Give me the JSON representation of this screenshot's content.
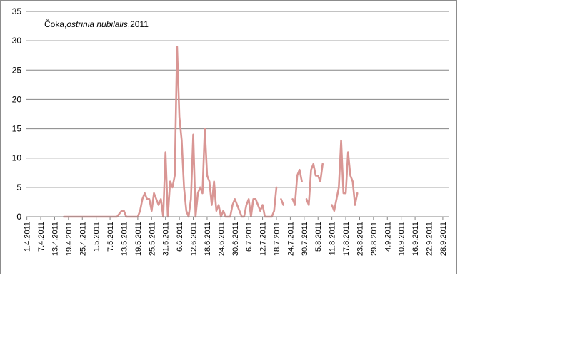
{
  "chart_data": {
    "type": "line",
    "title_parts": [
      "Čoka,",
      "ostrinia nubilalis",
      ",2011"
    ],
    "xlabel": "",
    "ylabel": "",
    "ylim": [
      0,
      35
    ],
    "yticks": [
      0,
      5,
      10,
      15,
      20,
      25,
      30,
      35
    ],
    "grid": true,
    "legend": "none",
    "line_color": "#d99694",
    "x_tick_labels": [
      "1.4.2011",
      "7.4.2011",
      "13.4.2011",
      "19.4.2011",
      "25.4.2011",
      "1.5.2011",
      "7.5.2011",
      "13.5.2011",
      "19.5.2011",
      "25.5.2011",
      "31.5.2011",
      "6.6.2011",
      "12.6.2011",
      "18.6.2011",
      "24.6.2011",
      "30.6.2011",
      "6.7.2011",
      "12.7.2011",
      "18.7.2011",
      "24.7.2011",
      "30.7.2011",
      "5.8.2011",
      "11.8.2011",
      "17.8.2011",
      "23.8.2011",
      "29.8.2011",
      "4.9.2011",
      "10.9.2011",
      "16.9.2011",
      "22.9.2011",
      "28.9.2011"
    ],
    "x_start_date": "2011-04-01",
    "x_end_date": "2011-10-01",
    "series": [
      {
        "points": [
          [
            "2011-04-17",
            0
          ],
          [
            "2011-04-20",
            0
          ],
          [
            "2011-04-25",
            0
          ],
          [
            "2011-05-01",
            0
          ],
          [
            "2011-05-05",
            0
          ],
          [
            "2011-05-10",
            0
          ],
          [
            "2011-05-12",
            1
          ],
          [
            "2011-05-13",
            1
          ],
          [
            "2011-05-14",
            0
          ],
          [
            "2011-05-15",
            0
          ],
          [
            "2011-05-17",
            0
          ],
          [
            "2011-05-18",
            0
          ],
          [
            "2011-05-19",
            0
          ],
          [
            "2011-05-20",
            1
          ],
          [
            "2011-05-21",
            3
          ],
          [
            "2011-05-22",
            4
          ],
          [
            "2011-05-23",
            3
          ],
          [
            "2011-05-24",
            3
          ],
          [
            "2011-05-25",
            1
          ],
          [
            "2011-05-26",
            4
          ],
          [
            "2011-05-27",
            3
          ],
          [
            "2011-05-28",
            2
          ],
          [
            "2011-05-29",
            3
          ],
          [
            "2011-05-30",
            0
          ],
          [
            "2011-05-31",
            11
          ],
          [
            "2011-06-01",
            0
          ],
          [
            "2011-06-02",
            6
          ],
          [
            "2011-06-03",
            5
          ],
          [
            "2011-06-04",
            7
          ],
          [
            "2011-06-05",
            29
          ],
          [
            "2011-06-06",
            17
          ],
          [
            "2011-06-07",
            13
          ],
          [
            "2011-06-08",
            5
          ],
          [
            "2011-06-09",
            1
          ],
          [
            "2011-06-10",
            0
          ],
          [
            "2011-06-11",
            3
          ],
          [
            "2011-06-12",
            14
          ],
          [
            "2011-06-13",
            0
          ],
          [
            "2011-06-14",
            4
          ],
          [
            "2011-06-15",
            5
          ],
          [
            "2011-06-16",
            4
          ],
          [
            "2011-06-17",
            15
          ],
          [
            "2011-06-18",
            7
          ],
          [
            "2011-06-19",
            6
          ],
          [
            "2011-06-20",
            2
          ],
          [
            "2011-06-21",
            6
          ],
          [
            "2011-06-22",
            1
          ],
          [
            "2011-06-23",
            2
          ],
          [
            "2011-06-24",
            0
          ],
          [
            "2011-06-25",
            1
          ],
          [
            "2011-06-26",
            0
          ],
          [
            "2011-06-27",
            0
          ],
          [
            "2011-06-28",
            0
          ],
          [
            "2011-06-29",
            2
          ],
          [
            "2011-06-30",
            3
          ],
          [
            "2011-07-01",
            2
          ],
          [
            "2011-07-02",
            1
          ],
          [
            "2011-07-03",
            0
          ],
          [
            "2011-07-04",
            0
          ],
          [
            "2011-07-05",
            2
          ],
          [
            "2011-07-06",
            3
          ],
          [
            "2011-07-07",
            0
          ],
          [
            "2011-07-08",
            3
          ],
          [
            "2011-07-09",
            3
          ],
          [
            "2011-07-10",
            2
          ],
          [
            "2011-07-11",
            1
          ],
          [
            "2011-07-12",
            2
          ],
          [
            "2011-07-13",
            0
          ],
          [
            "2011-07-14",
            0
          ],
          [
            "2011-07-15",
            0
          ],
          [
            "2011-07-16",
            0
          ],
          [
            "2011-07-17",
            1
          ],
          [
            "2011-07-18",
            5
          ],
          null,
          [
            "2011-07-20",
            3
          ],
          [
            "2011-07-21",
            2
          ],
          null,
          [
            "2011-07-25",
            3
          ],
          [
            "2011-07-26",
            2
          ],
          [
            "2011-07-27",
            7
          ],
          [
            "2011-07-28",
            8
          ],
          [
            "2011-07-29",
            6
          ],
          null,
          [
            "2011-07-31",
            3
          ],
          [
            "2011-08-01",
            2
          ],
          [
            "2011-08-02",
            8
          ],
          [
            "2011-08-03",
            9
          ],
          [
            "2011-08-04",
            7
          ],
          [
            "2011-08-05",
            7
          ],
          [
            "2011-08-06",
            6
          ],
          [
            "2011-08-07",
            9
          ],
          null,
          [
            "2011-08-11",
            2
          ],
          [
            "2011-08-12",
            1
          ],
          [
            "2011-08-13",
            3
          ],
          [
            "2011-08-14",
            5
          ],
          [
            "2011-08-15",
            13
          ],
          [
            "2011-08-16",
            4
          ],
          [
            "2011-08-17",
            4
          ],
          [
            "2011-08-18",
            11
          ],
          [
            "2011-08-19",
            7
          ],
          [
            "2011-08-20",
            6
          ],
          [
            "2011-08-21",
            2
          ],
          [
            "2011-08-22",
            4
          ]
        ]
      }
    ]
  }
}
